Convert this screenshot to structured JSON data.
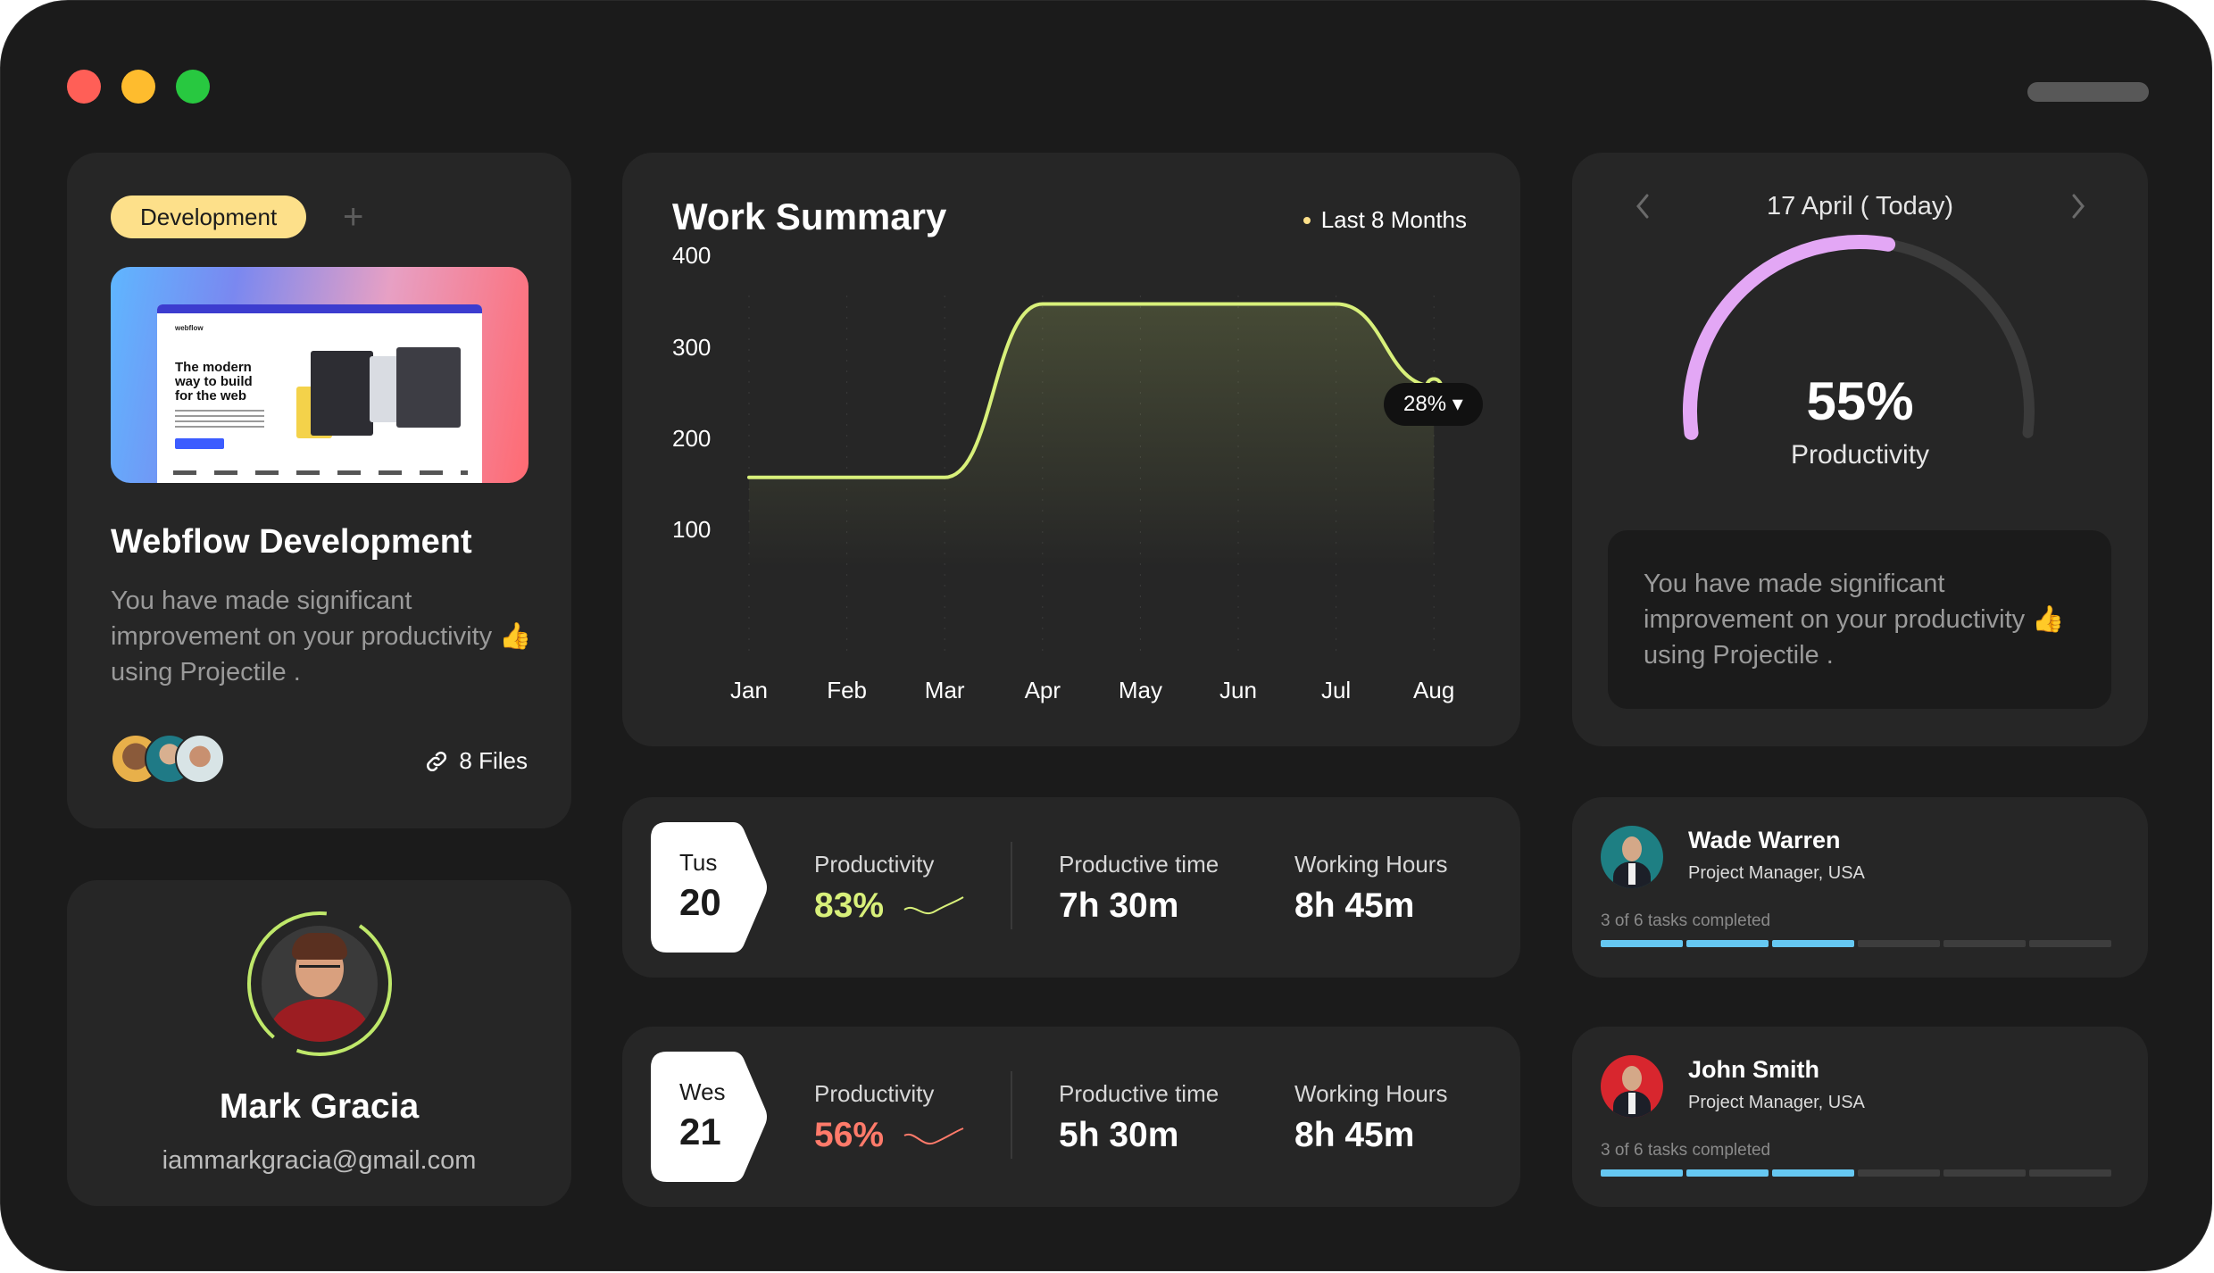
{
  "project": {
    "tag": "Development",
    "add_symbol": "+",
    "preview": {
      "logo": "webflow",
      "headline": "The modern way to build for the web"
    },
    "title": "Webflow Development",
    "description": "You have made significant improvement on your productivity 👍 using Projectile .",
    "files_label": "8 Files"
  },
  "profile": {
    "name": "Mark Gracia",
    "email": "iammarkgracia@gmail.com"
  },
  "summary": {
    "title": "Work Summary",
    "filter_label": "Last 8 Months",
    "badge": "28% ▾"
  },
  "chart_data": {
    "type": "line",
    "title": "Work Summary",
    "categories": [
      "Jan",
      "Feb",
      "Mar",
      "Apr",
      "May",
      "Jun",
      "Jul",
      "Aug"
    ],
    "x": [
      "Jan",
      "Feb",
      "Mar",
      "Apr",
      "May",
      "Jun",
      "Jul",
      "Aug"
    ],
    "values": [
      160,
      160,
      160,
      350,
      350,
      350,
      350,
      260
    ],
    "yticks": [
      400,
      300,
      200,
      100
    ],
    "ylim": [
      60,
      420
    ],
    "xlabel": "",
    "ylabel": "",
    "highlight_point": {
      "x": "Aug",
      "value": 260,
      "label": "28%"
    },
    "line_color": "#d8f07a"
  },
  "days": [
    {
      "weekday": "Tus",
      "date": "20",
      "productivity_label": "Productivity",
      "productivity": "83%",
      "productive_time_label": "Productive time",
      "productive_time": "7h 30m",
      "working_hours_label": "Working Hours",
      "working_hours": "8h 45m",
      "trend_color": "#d8f07a"
    },
    {
      "weekday": "Wes",
      "date": "21",
      "productivity_label": "Productivity",
      "productivity": "56%",
      "productive_time_label": "Productive time",
      "productive_time": "5h 30m",
      "working_hours_label": "Working Hours",
      "working_hours": "8h 45m",
      "trend_color": "#ff7a6a"
    }
  ],
  "calendar": {
    "date_label": "17 April ( Today)",
    "gauge_value": 55,
    "gauge_percent": "55%",
    "gauge_label": "Productivity",
    "message": "You have made significant improvement on your productivity 👍 using Projectile ."
  },
  "people": [
    {
      "name": "Wade Warren",
      "role": "Project Manager, USA",
      "tasks_text": "3 of 6 tasks completed",
      "done": 3,
      "total": 6
    },
    {
      "name": "John Smith",
      "role": "Project Manager, USA",
      "tasks_text": "3 of 6 tasks completed",
      "done": 3,
      "total": 6
    }
  ],
  "colors": {
    "accent_yellow": "#fde08a",
    "chart_line": "#d8f07a",
    "gauge_fill": "#e3a7f5",
    "progress": "#66c8f2",
    "negative": "#ff7a6a"
  }
}
